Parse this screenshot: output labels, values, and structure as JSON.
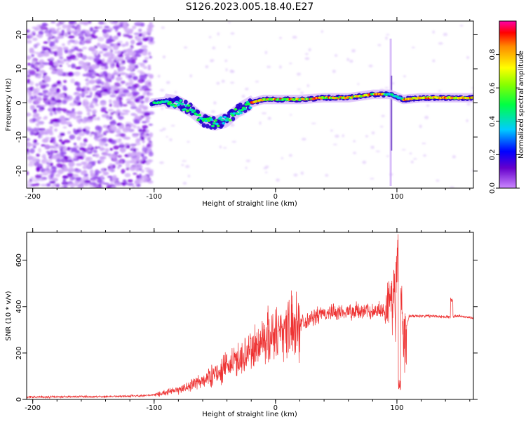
{
  "page_title": "S126.2023.005.18.40.E27",
  "colors": {
    "trace": "#ee3333",
    "grid_tick": "#000000",
    "bg": "#ffffff"
  },
  "chart_data": [
    {
      "type": "heatmap",
      "title": "S126.2023.005.18.40.E27",
      "xlabel": "Height of straight line (km)",
      "ylabel": "Frequency (Hz)",
      "xlim": [
        -205,
        163
      ],
      "ylim": [
        -25,
        24
      ],
      "xticks": [
        -200,
        -100,
        0,
        100
      ],
      "xticklabels": [
        "-200",
        "-100",
        "0",
        "100"
      ],
      "yticks": [
        -20,
        -10,
        0,
        10,
        20
      ],
      "yticklabels": [
        "-20",
        "-10",
        "0",
        "10",
        "20"
      ],
      "colorbar": {
        "label": "Normalized spectral amplitude",
        "range": [
          0,
          1
        ],
        "ticks": [
          0.0,
          0.2,
          0.4,
          0.6,
          0.8
        ],
        "ticklabels": [
          "0.0",
          "0.2",
          "0.4",
          "0.6",
          "0.8"
        ],
        "colormap": "rainbow"
      },
      "ridge": {
        "description_points": [
          [
            -100,
            0
          ],
          [
            -90,
            0.5
          ],
          [
            -80,
            0
          ],
          [
            -70,
            -2
          ],
          [
            -60,
            -5
          ],
          [
            -50,
            -6
          ],
          [
            -40,
            -5
          ],
          [
            -30,
            -2
          ],
          [
            -20,
            0
          ],
          [
            -10,
            1
          ],
          [
            0,
            1
          ],
          [
            20,
            1
          ],
          [
            40,
            1.5
          ],
          [
            60,
            1.5
          ],
          [
            80,
            2.5
          ],
          [
            95,
            2.5
          ],
          [
            105,
            1
          ],
          [
            120,
            1.5
          ],
          [
            163,
            1.5
          ]
        ]
      }
    },
    {
      "type": "line",
      "xlabel": "Height of straight line (km)",
      "ylabel": "SNR (10 * v/v)",
      "xlim": [
        -205,
        163
      ],
      "ylim": [
        0,
        720
      ],
      "xticks": [
        -200,
        -100,
        0,
        100
      ],
      "xticklabels": [
        "-200",
        "-100",
        "0",
        "100"
      ],
      "yticks": [
        0,
        200,
        400,
        600
      ],
      "yticklabels": [
        "0",
        "200",
        "400",
        "600"
      ],
      "series": [
        {
          "values_description": "trend",
          "x": [
            -205,
            -150,
            -110,
            -100,
            -80,
            -60,
            -40,
            -20,
            -10,
            0,
            10,
            20,
            30,
            40,
            60,
            80,
            90,
            95,
            98,
            100,
            102,
            105,
            110,
            130,
            145,
            150,
            163
          ],
          "y": [
            10,
            12,
            15,
            20,
            40,
            80,
            140,
            210,
            260,
            290,
            310,
            330,
            350,
            370,
            380,
            380,
            390,
            420,
            460,
            200,
            720,
            250,
            360,
            360,
            355,
            360,
            350
          ]
        }
      ]
    }
  ]
}
